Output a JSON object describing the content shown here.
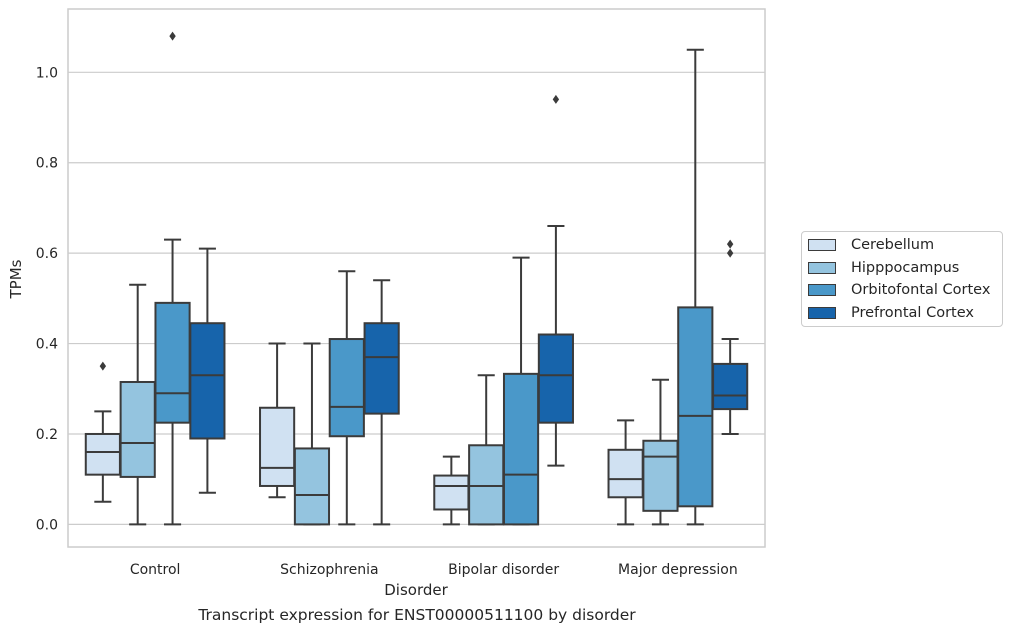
{
  "chart_data": {
    "type": "box",
    "title": "",
    "xlabel": "Disorder",
    "ylabel": "TPMs",
    "caption": "Transcript expression for ENST00000511100 by disorder",
    "categories": [
      "Control",
      "Schizophrenia",
      "Bipolar disorder",
      "Major depression"
    ],
    "ylim": [
      -0.05,
      1.14
    ],
    "yticks": [
      0.0,
      0.2,
      0.4,
      0.6,
      0.8,
      1.0
    ],
    "ytick_labels": [
      "0.0",
      "0.2",
      "0.4",
      "0.6",
      "0.8",
      "1.0"
    ],
    "grid": "horizontal",
    "legend_position": "right, outside plot",
    "series": [
      {
        "name": "Cerebellum",
        "color": "#d0e1f2",
        "boxes": [
          {
            "whisker_low": 0.05,
            "q1": 0.11,
            "median": 0.16,
            "q3": 0.2,
            "whisker_high": 0.25,
            "outliers": [
              0.35
            ]
          },
          {
            "whisker_low": 0.06,
            "q1": 0.085,
            "median": 0.125,
            "q3": 0.258,
            "whisker_high": 0.4,
            "outliers": []
          },
          {
            "whisker_low": 0.0,
            "q1": 0.033,
            "median": 0.085,
            "q3": 0.108,
            "whisker_high": 0.15,
            "outliers": []
          },
          {
            "whisker_low": 0.0,
            "q1": 0.06,
            "median": 0.1,
            "q3": 0.165,
            "whisker_high": 0.23,
            "outliers": []
          }
        ]
      },
      {
        "name": "Hipppocampus",
        "color": "#94c4df",
        "boxes": [
          {
            "whisker_low": 0.0,
            "q1": 0.105,
            "median": 0.18,
            "q3": 0.315,
            "whisker_high": 0.53,
            "outliers": []
          },
          {
            "whisker_low": 0.0,
            "q1": 0.0,
            "median": 0.065,
            "q3": 0.168,
            "whisker_high": 0.4,
            "outliers": []
          },
          {
            "whisker_low": 0.0,
            "q1": 0.0,
            "median": 0.085,
            "q3": 0.175,
            "whisker_high": 0.33,
            "outliers": []
          },
          {
            "whisker_low": 0.0,
            "q1": 0.03,
            "median": 0.15,
            "q3": 0.185,
            "whisker_high": 0.32,
            "outliers": []
          }
        ]
      },
      {
        "name": "Orbitofontal Cortex",
        "color": "#4a98c9",
        "boxes": [
          {
            "whisker_low": 0.0,
            "q1": 0.225,
            "median": 0.29,
            "q3": 0.49,
            "whisker_high": 0.63,
            "outliers": [
              1.08
            ]
          },
          {
            "whisker_low": 0.0,
            "q1": 0.195,
            "median": 0.26,
            "q3": 0.41,
            "whisker_high": 0.56,
            "outliers": []
          },
          {
            "whisker_low": 0.0,
            "q1": 0.0,
            "median": 0.11,
            "q3": 0.333,
            "whisker_high": 0.59,
            "outliers": []
          },
          {
            "whisker_low": 0.0,
            "q1": 0.04,
            "median": 0.24,
            "q3": 0.48,
            "whisker_high": 1.05,
            "outliers": []
          }
        ]
      },
      {
        "name": "Prefrontal Cortex",
        "color": "#1764ab",
        "boxes": [
          {
            "whisker_low": 0.07,
            "q1": 0.19,
            "median": 0.33,
            "q3": 0.445,
            "whisker_high": 0.61,
            "outliers": []
          },
          {
            "whisker_low": 0.0,
            "q1": 0.245,
            "median": 0.37,
            "q3": 0.445,
            "whisker_high": 0.54,
            "outliers": []
          },
          {
            "whisker_low": 0.13,
            "q1": 0.225,
            "median": 0.33,
            "q3": 0.42,
            "whisker_high": 0.66,
            "outliers": [
              0.94
            ]
          },
          {
            "whisker_low": 0.2,
            "q1": 0.255,
            "median": 0.285,
            "q3": 0.355,
            "whisker_high": 0.41,
            "outliers": [
              0.6,
              0.62
            ]
          }
        ]
      }
    ]
  }
}
